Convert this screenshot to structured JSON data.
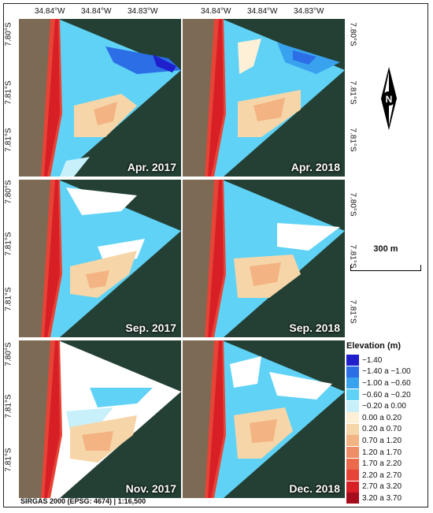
{
  "panels": [
    {
      "label": "Apr. 2017"
    },
    {
      "label": "Apr. 2018"
    },
    {
      "label": "Sep. 2017"
    },
    {
      "label": "Sep. 2018"
    },
    {
      "label": "Nov. 2017"
    },
    {
      "label": "Dec. 2018"
    }
  ],
  "coords": {
    "lon": [
      "34.84°W",
      "34.84°W",
      "34.83°W"
    ],
    "lat_top": [
      "7.80°S",
      "7.81°S",
      "7.81°S"
    ],
    "lat_mid": [
      "7.80°S",
      "7.81°S",
      "7.81°S"
    ],
    "lat_bot": [
      "7.80°S",
      "7.81°S",
      "7.81°S"
    ]
  },
  "north_arrow": {
    "letter": "N"
  },
  "scale_bar": {
    "label": "300 m"
  },
  "legend": {
    "title": "Elevation (m)",
    "items": [
      {
        "label": "−1.40",
        "color": "#1f1fcc"
      },
      {
        "label": "−1.40 a −1.00",
        "color": "#2b6ee6"
      },
      {
        "label": "−1.00 a −0.60",
        "color": "#39a2ef"
      },
      {
        "label": "−0.60 a −0.20",
        "color": "#5fd2f6"
      },
      {
        "label": "−0.20 a  0.00",
        "color": "#c7f0fb"
      },
      {
        "label": "0.00 a  0.20",
        "color": "#fdf0d6"
      },
      {
        "label": "0.20 a  0.70",
        "color": "#f6d6a8"
      },
      {
        "label": "0.70 a  1.20",
        "color": "#f3b383"
      },
      {
        "label": "1.20 a  1.70",
        "color": "#ef8d66"
      },
      {
        "label": "1.70 a  2.20",
        "color": "#eb6a4c"
      },
      {
        "label": "2.20 a  2.70",
        "color": "#e64436"
      },
      {
        "label": "2.70 a  3.20",
        "color": "#d81f26"
      },
      {
        "label": "3.20 a  3.70",
        "color": "#a50d1d"
      }
    ]
  },
  "footer": "SIRGAS 2000 (EPSG: 4674) | 1:16,500"
}
